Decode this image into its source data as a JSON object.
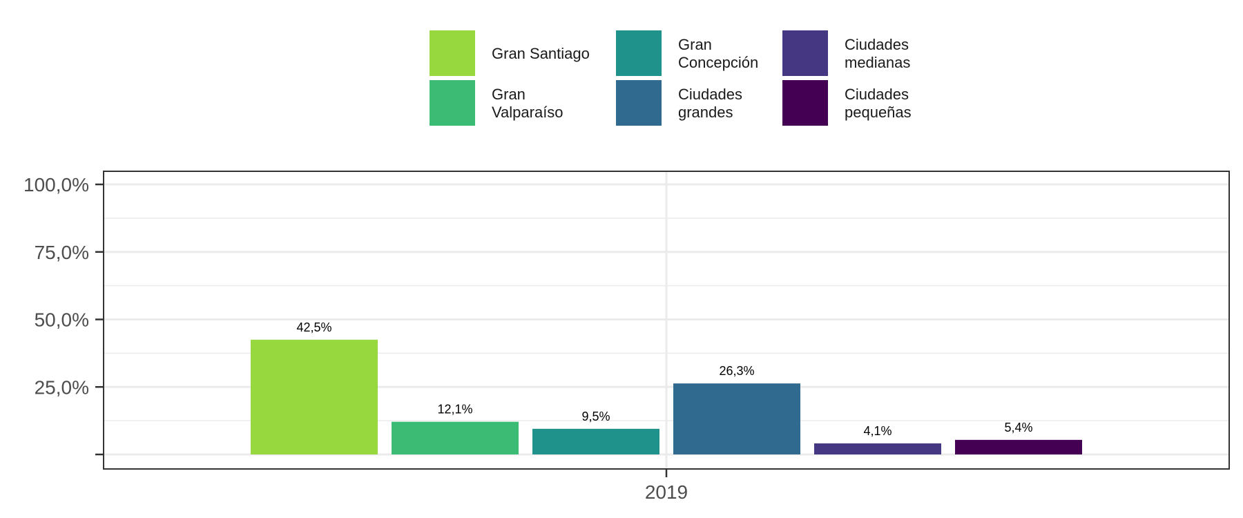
{
  "chart_data": {
    "type": "bar",
    "categories": [
      "2019"
    ],
    "ylim": [
      0,
      100
    ],
    "y_ticks": [
      {
        "value": 0,
        "label": ""
      },
      {
        "value": 25,
        "label": "25,0%"
      },
      {
        "value": 50,
        "label": "50,0%"
      },
      {
        "value": 75,
        "label": "75,0%"
      },
      {
        "value": 100,
        "label": "100,0%"
      }
    ],
    "grid": true,
    "legend_position": "top",
    "series": [
      {
        "name": "Gran Santiago",
        "legend_lines": [
          "Gran Santiago"
        ],
        "value": 42.5,
        "label": "42,5%",
        "color": "#97d83f"
      },
      {
        "name": "Gran Valparaíso",
        "legend_lines": [
          "Gran",
          "Valparaíso"
        ],
        "value": 12.1,
        "label": "12,1%",
        "color": "#3cbb75"
      },
      {
        "name": "Gran Concepción",
        "legend_lines": [
          "Gran",
          "Concepción"
        ],
        "value": 9.5,
        "label": "9,5%",
        "color": "#20928c"
      },
      {
        "name": "Ciudades grandes",
        "legend_lines": [
          "Ciudades",
          "grandes"
        ],
        "value": 26.3,
        "label": "26,3%",
        "color": "#306a8e"
      },
      {
        "name": "Ciudades medianas",
        "legend_lines": [
          "Ciudades",
          "medianas"
        ],
        "value": 4.1,
        "label": "4,1%",
        "color": "#453781"
      },
      {
        "name": "Ciudades pequeñas",
        "legend_lines": [
          "Ciudades",
          "pequeñas"
        ],
        "value": 5.4,
        "label": "5,4%",
        "color": "#440154"
      }
    ]
  }
}
